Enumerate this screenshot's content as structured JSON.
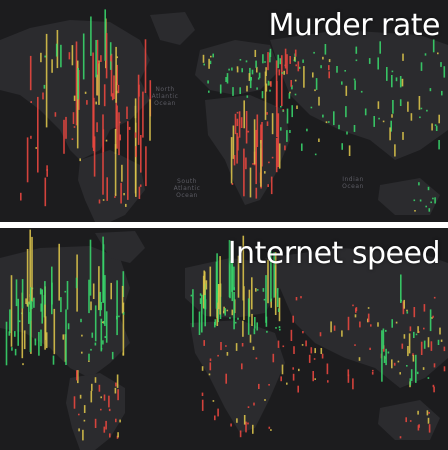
{
  "panels": [
    {
      "title": "Murder rate",
      "ocean_labels": [
        "North Atlantic Ocean",
        "South Atlantic Ocean",
        "Indian Ocean"
      ]
    },
    {
      "title": "Internet speed"
    }
  ],
  "colors": {
    "background": "#1c1c1e",
    "land": "#2b2b2e",
    "high": "#e8473f",
    "mid": "#d9c24a",
    "low": "#39d46a"
  }
}
